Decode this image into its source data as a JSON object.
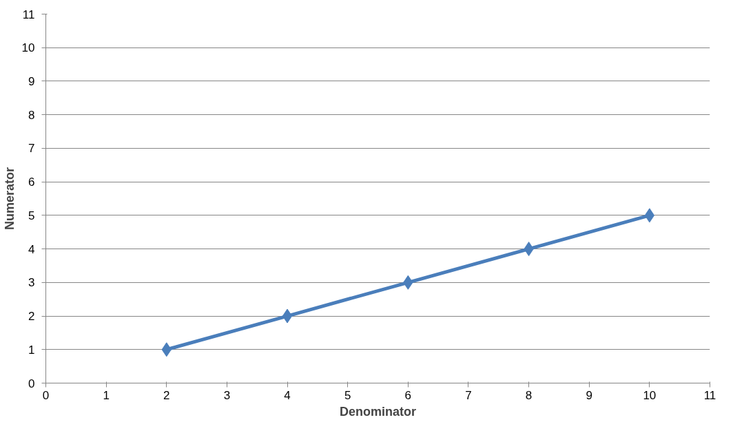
{
  "chart_data": {
    "type": "line",
    "xlabel": "Denominator",
    "ylabel": "Numerator",
    "x": [
      2,
      4,
      6,
      8,
      10
    ],
    "series": [
      {
        "color": "#4a7ebb",
        "values": [
          1,
          2,
          3,
          4,
          5
        ]
      }
    ],
    "xlim": [
      0,
      11
    ],
    "ylim": [
      0,
      11
    ],
    "xticks": [
      0,
      1,
      2,
      3,
      4,
      5,
      6,
      7,
      8,
      9,
      10,
      11
    ],
    "yticks": [
      0,
      1,
      2,
      3,
      4,
      5,
      6,
      7,
      8,
      9,
      10,
      11
    ],
    "grid": "y",
    "marker": "diamond",
    "line_style": "solid"
  }
}
